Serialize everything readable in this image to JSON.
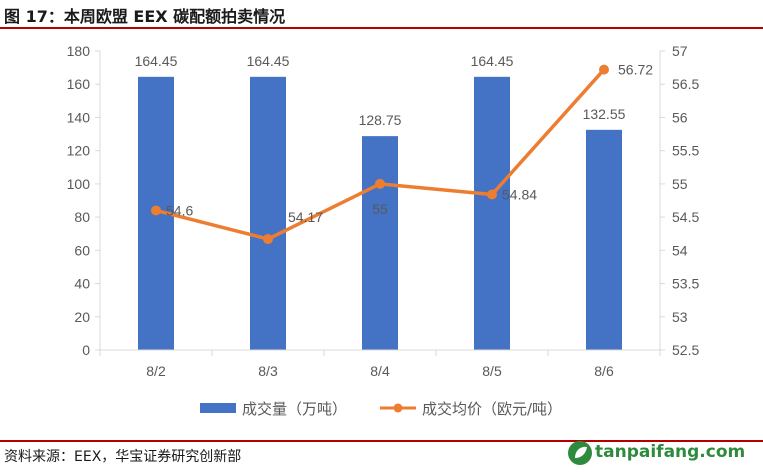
{
  "header": {
    "title": "图 17：本周欧盟 EEX 碳配额拍卖情况"
  },
  "footer": {
    "source": "资料来源：EEX，华宝证券研究创新部",
    "watermark": "tanpaifang.com"
  },
  "colors": {
    "bar": "#4472C4",
    "line": "#ED7D31",
    "rule": "#B30000",
    "grid": "#D9D9D9",
    "axis_text": "#595959"
  },
  "chart_data": {
    "type": "bar+line",
    "categories": [
      "8/2",
      "8/3",
      "8/4",
      "8/5",
      "8/6"
    ],
    "series": [
      {
        "name": "成交量（万吨）",
        "type": "bar",
        "axis": "left",
        "values": [
          164.45,
          164.45,
          128.75,
          164.45,
          132.55
        ],
        "labels": [
          "164.45",
          "164.45",
          "128.75",
          "164.45",
          "132.55"
        ]
      },
      {
        "name": "成交均价（欧元/吨）",
        "type": "line",
        "axis": "right",
        "values": [
          54.6,
          54.17,
          55,
          54.84,
          56.72
        ],
        "labels": [
          "54.6",
          "54.17",
          "55",
          "54.84",
          "56.72"
        ]
      }
    ],
    "y_left": {
      "min": 0,
      "max": 180,
      "ticks": [
        "0",
        "20",
        "40",
        "60",
        "80",
        "100",
        "120",
        "140",
        "160",
        "180"
      ]
    },
    "y_right": {
      "min": 52.5,
      "max": 57,
      "ticks": [
        "52.5",
        "53",
        "53.5",
        "54",
        "54.5",
        "55",
        "55.5",
        "56",
        "56.5",
        "57"
      ]
    },
    "grid": false,
    "legend": "bottom"
  }
}
